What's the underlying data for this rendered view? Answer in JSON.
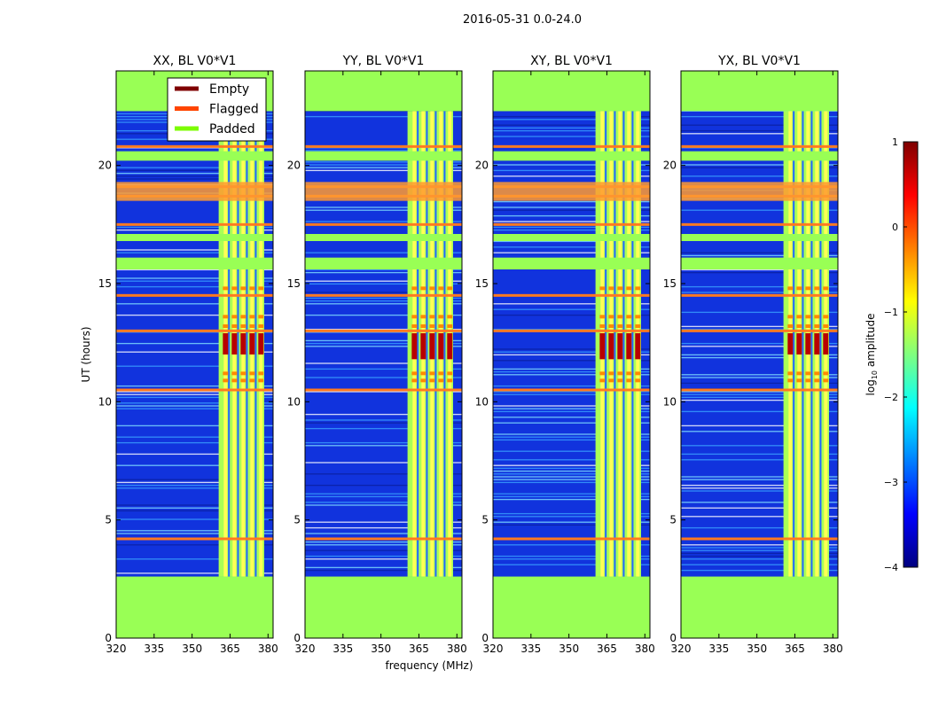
{
  "suptitle": "2016-05-31 0.0-24.0",
  "shared": {
    "xlabel": "frequency (MHz)",
    "ylabel": "UT (hours)",
    "x_ticks": [
      320,
      335,
      350,
      365,
      380
    ],
    "y_ticks": [
      0,
      5,
      10,
      15,
      20
    ],
    "xlim": [
      320,
      382
    ],
    "ylim": [
      0,
      24
    ]
  },
  "legend": {
    "location": "upper-right of first panel",
    "entries": [
      {
        "label": "Empty",
        "color": "#7f0000"
      },
      {
        "label": "Flagged",
        "color": "#ff4500"
      },
      {
        "label": "Padded",
        "color": "#7cfc00"
      }
    ]
  },
  "colorbar": {
    "label_prefix": "log",
    "label_sub": "10",
    "label_suffix": " amplitude",
    "ticks": [
      1,
      0,
      -1,
      -2,
      -3,
      -4
    ],
    "range": [
      -4,
      1
    ],
    "colors": [
      "#00007f",
      "#0000ff",
      "#007fff",
      "#00ffff",
      "#7fff7f",
      "#ffff00",
      "#ff7f00",
      "#ff0000",
      "#7f0000"
    ]
  },
  "colors": {
    "padded": "#99ff55",
    "low_amp": "#1133dd",
    "mid_amp": "#aaff55",
    "flag_band": "#ff7a20",
    "high_amp": "#b80000"
  },
  "chart_data": [
    {
      "type": "heatmap",
      "title": "XX, BL V0*V1",
      "pol": "XX",
      "baseline": "V0*V1",
      "xlabel": "",
      "ylabel": "UT (hours)",
      "xlim": [
        320,
        382
      ],
      "ylim": [
        0,
        24
      ],
      "padded_ut_ranges": [
        [
          0,
          2.6
        ],
        [
          15.6,
          16.1
        ],
        [
          16.8,
          17.1
        ],
        [
          20.2,
          20.6
        ],
        [
          22.3,
          24
        ]
      ],
      "active_ut_range": [
        2.6,
        22.3
      ],
      "signal_freq_range": [
        360.5,
        378.5
      ],
      "flag_lines_ut": [
        4.2,
        10.5,
        13.0,
        14.5,
        17.5,
        18.7,
        19.1,
        20.8
      ],
      "peak_ut_range": [
        12.0,
        12.9
      ],
      "low_level_log10_amp": -3.0,
      "signal_level_log10_amp": -1.3,
      "peak_level_log10_amp": 0.6
    },
    {
      "type": "heatmap",
      "title": "YY, BL V0*V1",
      "pol": "YY",
      "baseline": "V0*V1",
      "xlabel": "frequency (MHz)",
      "ylabel": "",
      "xlim": [
        320,
        382
      ],
      "ylim": [
        0,
        24
      ],
      "padded_ut_ranges": [
        [
          0,
          2.6
        ],
        [
          15.6,
          16.1
        ],
        [
          16.8,
          17.1
        ],
        [
          20.2,
          20.6
        ],
        [
          22.3,
          24
        ]
      ],
      "active_ut_range": [
        2.6,
        22.3
      ],
      "signal_freq_range": [
        360.5,
        378.5
      ],
      "flag_lines_ut": [
        4.2,
        10.5,
        13.0,
        14.5,
        17.5,
        18.7,
        19.1,
        20.8
      ],
      "peak_ut_range": [
        11.8,
        12.9
      ],
      "low_level_log10_amp": -3.0,
      "signal_level_log10_amp": -1.3,
      "peak_level_log10_amp": 0.8
    },
    {
      "type": "heatmap",
      "title": "XY, BL V0*V1",
      "pol": "XY",
      "baseline": "V0*V1",
      "xlabel": "",
      "ylabel": "",
      "xlim": [
        320,
        382
      ],
      "ylim": [
        0,
        24
      ],
      "padded_ut_ranges": [
        [
          0,
          2.6
        ],
        [
          15.6,
          16.1
        ],
        [
          16.8,
          17.1
        ],
        [
          20.2,
          20.6
        ],
        [
          22.3,
          24
        ]
      ],
      "active_ut_range": [
        2.6,
        22.3
      ],
      "signal_freq_range": [
        360.5,
        378.5
      ],
      "flag_lines_ut": [
        4.2,
        10.5,
        13.0,
        14.5,
        17.5,
        18.7,
        19.1,
        20.8
      ],
      "peak_ut_range": [
        11.8,
        12.9
      ],
      "low_level_log10_amp": -3.0,
      "signal_level_log10_amp": -1.4,
      "peak_level_log10_amp": 0.5
    },
    {
      "type": "heatmap",
      "title": "YX, BL V0*V1",
      "pol": "YX",
      "baseline": "V0*V1",
      "xlabel": "",
      "ylabel": "",
      "xlim": [
        320,
        382
      ],
      "ylim": [
        0,
        24
      ],
      "padded_ut_ranges": [
        [
          0,
          2.6
        ],
        [
          15.6,
          16.1
        ],
        [
          16.8,
          17.1
        ],
        [
          20.2,
          20.6
        ],
        [
          22.3,
          24
        ]
      ],
      "active_ut_range": [
        2.6,
        22.3
      ],
      "signal_freq_range": [
        360.5,
        378.5
      ],
      "flag_lines_ut": [
        4.2,
        10.5,
        13.0,
        14.5,
        17.5,
        18.7,
        19.1,
        20.8
      ],
      "peak_ut_range": [
        12.0,
        12.9
      ],
      "low_level_log10_amp": -3.0,
      "signal_level_log10_amp": -1.4,
      "peak_level_log10_amp": 0.4
    }
  ]
}
